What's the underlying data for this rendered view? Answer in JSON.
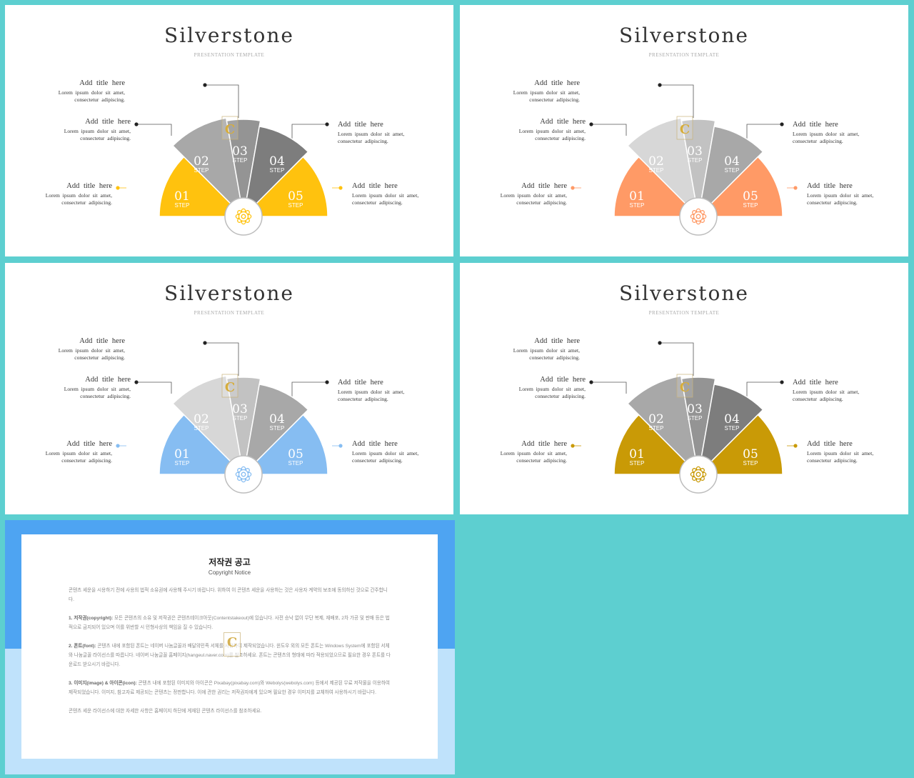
{
  "slides": [
    {
      "title": "Silverstone",
      "subtitle": "PRESENTATION TEMPLATE",
      "accent": "#ffc20e",
      "segment_colors": [
        "#ffc20e",
        "#a8a8a8",
        "#949494",
        "#7d7d7d",
        "#ffc20e"
      ],
      "icon_color": "#ffc20e"
    },
    {
      "title": "Silverstone",
      "subtitle": "PRESENTATION TEMPLATE",
      "accent": "#ff9a66",
      "segment_colors": [
        "#ff9a66",
        "#d7d7d7",
        "#c2c2c2",
        "#a8a8a8",
        "#ff9a66"
      ],
      "icon_color": "#ff9a66"
    },
    {
      "title": "Silverstone",
      "subtitle": "PRESENTATION TEMPLATE",
      "accent": "#86bdf2",
      "segment_colors": [
        "#86bdf2",
        "#d7d7d7",
        "#c2c2c2",
        "#a8a8a8",
        "#86bdf2"
      ],
      "icon_color": "#86bdf2"
    },
    {
      "title": "Silverstone",
      "subtitle": "PRESENTATION TEMPLATE",
      "accent": "#c99a06",
      "segment_colors": [
        "#c99a06",
        "#a8a8a8",
        "#949494",
        "#7d7d7d",
        "#c99a06"
      ],
      "icon_color": "#c99a06"
    }
  ],
  "steps": [
    {
      "num": "01",
      "word": "STEP"
    },
    {
      "num": "02",
      "word": "STEP"
    },
    {
      "num": "03",
      "word": "STEP"
    },
    {
      "num": "04",
      "word": "STEP"
    },
    {
      "num": "05",
      "word": "STEP"
    }
  ],
  "labels": [
    {
      "title": "Add title here",
      "line1": "Lorem ipsum dolor sit amet,",
      "line2": "consectetur adipiscing."
    },
    {
      "title": "Add title here",
      "line1": "Lorem ipsum dolor sit amet,",
      "line2": "consectetur adipiscing."
    },
    {
      "title": "Add title here",
      "line1": "Lorem ipsum dolor sit amet,",
      "line2": "consectetur adipiscing."
    },
    {
      "title": "Add title here",
      "line1": "Lorem ipsum dolor sit amet,",
      "line2": "consectetur adipiscing."
    },
    {
      "title": "Add title here",
      "line1": "Lorem ipsum dolor sit amet,",
      "line2": "consectetur adipiscing."
    }
  ],
  "watermark": "C",
  "notice": {
    "title": "저작권 공고",
    "subtitle": "Copyright Notice",
    "intro": "콘텐츠 세운을 시용하기 전에 사용의 법적 소유권에 사용해 주시기 바랍니다. 위하여 이 콘텐츠 세운을 사용하는 것은 사용자 계약의 보조에 동의하신 것으로 간주합니다.",
    "p1_head": "1. 저작권(copyright):",
    "p1": " 모든 콘텐츠의 소유 및 저작권은 콘텐츠테이크아웃(Contentstakeout)에 있습니다. 사전 승낙 없이 무단 복제, 재배포, 2차 가공 및 판매 등은 법적으로 금지되어 있으며 이를 위반할 시 민형사상의 책임을 질 수 있습니다.",
    "p2_head": "2. 폰트(font):",
    "p2": " 콘텐츠 내에 포함된 폰트는 네이버 나눔글꼴과 배달의민족 서체를 사용하여 제작되었습니다. 윈도우 외의 모든 폰트는 Windows System에 포함된 서체와 나눔글꼴 라이선스를 따릅니다. 네이버 나눔글꼴 홈페이지(hangeul.naver.com)를 참조하세요. 폰트는 콘텐츠의 형태에 따라 적용되었으므로 필요한 경우 폰트를 다운로드 받으시기 바랍니다.",
    "p3_head": "3. 이미지(image) & 아이콘(icon):",
    "p3": " 콘텐츠 내에 포함된 이미지와 아이콘은 Pixabay(pixabay.com)와 Webolys(webolys.com) 등에서 제공된 무료 저작물을 이용하여 제작되었습니다. 이미지, 참고자료 제공되는 콘텐츠는 정판합니다. 이에 관한 권리는 저작권자에게 있으며 필요한 경우 이미지를 교체하여 사용하시기 바랍니다.",
    "outro": "콘텐츠 세운 라이선스에 대한 자세한 사항은 홈페이지 하단에 게재된 콘텐츠 라이선스를 참조하세요."
  }
}
